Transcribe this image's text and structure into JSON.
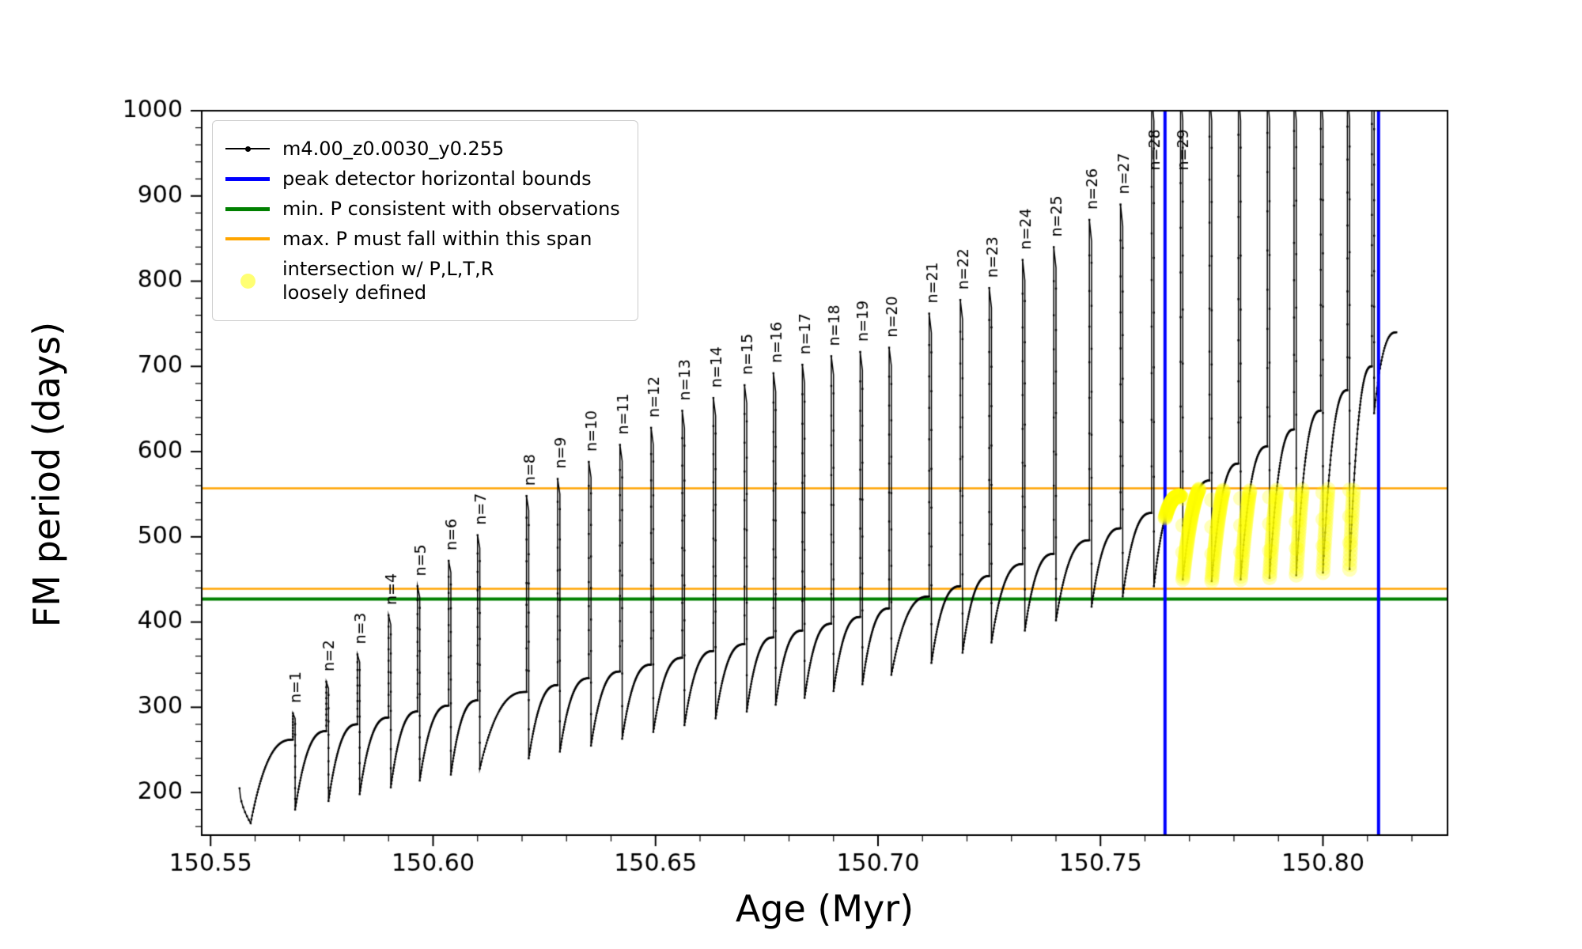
{
  "figure": {
    "xlabel": "Age (Myr)",
    "ylabel": "FM period (days)"
  },
  "legend": {
    "entries": [
      {
        "label": "m4.00_z0.0030_y0.255",
        "type": "line-with-dot-marker",
        "color": "#000000"
      },
      {
        "label": "peak detector horizontal bounds",
        "type": "line",
        "color": "#0000ff"
      },
      {
        "label": "min. P consistent with observations",
        "type": "line",
        "color": "#008000"
      },
      {
        "label": "max. P must fall within this span",
        "type": "line",
        "color": "#ffa500"
      },
      {
        "label": "intersection w/ P,L,T,R loosely defined",
        "label_line1": "intersection w/ P,L,T,R",
        "label_line2": "loosely defined",
        "type": "dot",
        "color": "#ffff00"
      }
    ]
  },
  "chart_data": {
    "type": "line",
    "title": "",
    "xlabel": "Age (Myr)",
    "ylabel": "FM period (days)",
    "xlim": [
      150.548,
      150.828
    ],
    "ylim": [
      150,
      1000
    ],
    "x_ticks": [
      150.55,
      150.6,
      150.65,
      150.7,
      150.75,
      150.8
    ],
    "x_tick_labels": [
      "150.55",
      "150.60",
      "150.65",
      "150.70",
      "150.75",
      "150.80"
    ],
    "y_ticks": [
      200,
      300,
      400,
      500,
      600,
      700,
      800,
      900,
      1000
    ],
    "x_minor_step": 0.01,
    "y_minor_step": 20,
    "grid": false,
    "legend_position": "upper-left",
    "series_label": "m4.00_z0.0030_y0.255",
    "series_color": "#000000",
    "curve_start": {
      "x": 150.5565,
      "y": 205,
      "dip_x": 150.559,
      "dip_y": 164
    },
    "curve_end": {
      "x": 150.8165,
      "y": 740
    },
    "pulses": [
      {
        "n": 1,
        "x": 150.5685,
        "plateau": 262,
        "peak": 293,
        "dip_after": 180
      },
      {
        "n": 2,
        "x": 150.576,
        "plateau": 272,
        "peak": 330,
        "dip_after": 190
      },
      {
        "n": 3,
        "x": 150.583,
        "plateau": 280,
        "peak": 362,
        "dip_after": 198
      },
      {
        "n": 4,
        "x": 150.59,
        "plateau": 288,
        "peak": 408,
        "dip_after": 206
      },
      {
        "n": 5,
        "x": 150.5965,
        "plateau": 295,
        "peak": 442,
        "dip_after": 214
      },
      {
        "n": 6,
        "x": 150.6035,
        "plateau": 302,
        "peak": 472,
        "dip_after": 221
      },
      {
        "n": 7,
        "x": 150.61,
        "plateau": 308,
        "peak": 502,
        "dip_after": 228
      },
      {
        "n": 8,
        "x": 150.621,
        "plateau": 318,
        "peak": 548,
        "dip_after": 240
      },
      {
        "n": 9,
        "x": 150.628,
        "plateau": 326,
        "peak": 568,
        "dip_after": 248
      },
      {
        "n": 10,
        "x": 150.635,
        "plateau": 334,
        "peak": 588,
        "dip_after": 255
      },
      {
        "n": 11,
        "x": 150.642,
        "plateau": 342,
        "peak": 608,
        "dip_after": 263
      },
      {
        "n": 12,
        "x": 150.649,
        "plateau": 350,
        "peak": 628,
        "dip_after": 271
      },
      {
        "n": 13,
        "x": 150.656,
        "plateau": 358,
        "peak": 648,
        "dip_after": 279
      },
      {
        "n": 14,
        "x": 150.663,
        "plateau": 366,
        "peak": 663,
        "dip_after": 287
      },
      {
        "n": 15,
        "x": 150.67,
        "plateau": 374,
        "peak": 678,
        "dip_after": 295
      },
      {
        "n": 16,
        "x": 150.6765,
        "plateau": 382,
        "peak": 692,
        "dip_after": 303
      },
      {
        "n": 17,
        "x": 150.683,
        "plateau": 390,
        "peak": 702,
        "dip_after": 311
      },
      {
        "n": 18,
        "x": 150.6895,
        "plateau": 398,
        "peak": 712,
        "dip_after": 319
      },
      {
        "n": 19,
        "x": 150.696,
        "plateau": 406,
        "peak": 717,
        "dip_after": 327
      },
      {
        "n": 20,
        "x": 150.7025,
        "plateau": 416,
        "peak": 722,
        "dip_after": 338
      },
      {
        "n": 21,
        "x": 150.7115,
        "plateau": 430,
        "peak": 762,
        "dip_after": 352
      },
      {
        "n": 22,
        "x": 150.7185,
        "plateau": 442,
        "peak": 778,
        "dip_after": 364
      },
      {
        "n": 23,
        "x": 150.725,
        "plateau": 454,
        "peak": 792,
        "dip_after": 376
      },
      {
        "n": 24,
        "x": 150.7325,
        "plateau": 468,
        "peak": 825,
        "dip_after": 390
      },
      {
        "n": 25,
        "x": 150.7395,
        "plateau": 480,
        "peak": 840,
        "dip_after": 402
      },
      {
        "n": 26,
        "x": 150.7475,
        "plateau": 496,
        "peak": 872,
        "dip_after": 418
      },
      {
        "n": 27,
        "x": 150.7545,
        "plateau": 510,
        "peak": 890,
        "dip_after": 430
      },
      {
        "n": 28,
        "x": 150.7615,
        "plateau": 528,
        "peak": 1020,
        "dip_after": 442
      },
      {
        "n": 29,
        "x": 150.768,
        "plateau": 548,
        "peak": 1020,
        "dip_after": 450
      },
      {
        "n": null,
        "x": 150.7745,
        "plateau": 566,
        "peak": 1020,
        "dip_after": 448
      },
      {
        "n": null,
        "x": 150.781,
        "plateau": 586,
        "peak": 1020,
        "dip_after": 450
      },
      {
        "n": null,
        "x": 150.7875,
        "plateau": 606,
        "peak": 1020,
        "dip_after": 452
      },
      {
        "n": null,
        "x": 150.7935,
        "plateau": 626,
        "peak": 1020,
        "dip_after": 455
      },
      {
        "n": null,
        "x": 150.7995,
        "plateau": 648,
        "peak": 1020,
        "dip_after": 458
      },
      {
        "n": null,
        "x": 150.8055,
        "plateau": 672,
        "peak": 1020,
        "dip_after": 462
      },
      {
        "n": null,
        "x": 150.811,
        "plateau": 700,
        "peak": 1020,
        "dip_after": 645
      }
    ],
    "hlines": [
      {
        "y": 427,
        "color": "#008000",
        "lw": 4,
        "role": "min. P consistent with observations"
      },
      {
        "y": 439,
        "color": "#ffa500",
        "lw": 2.5,
        "role": "max. P span (lower bound)"
      },
      {
        "y": 557,
        "color": "#ffa500",
        "lw": 2.5,
        "role": "max. P span (upper bound)"
      }
    ],
    "vlines": [
      {
        "x": 150.7645,
        "role": "peak detector left bound"
      },
      {
        "x": 150.8125,
        "role": "peak detector right bound"
      }
    ],
    "vline_style": {
      "color": "#0000ff",
      "lw": 4
    },
    "intersection_scatter": {
      "label": "intersection w/ P,L,T,R loosely defined",
      "color_rgba": "rgba(255,255,0,0.28)",
      "radius_px": 9.5,
      "x_range": [
        150.7645,
        150.8125
      ],
      "y_range": [
        441,
        556
      ]
    }
  }
}
